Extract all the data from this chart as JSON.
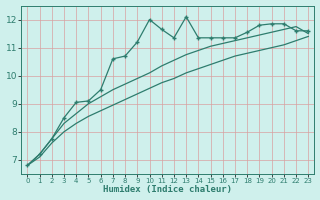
{
  "xlabel": "Humidex (Indice chaleur)",
  "background_color": "#cff0ec",
  "line_color": "#2e7d6e",
  "grid_color": "#b8ddd9",
  "xlim": [
    -0.5,
    23.5
  ],
  "ylim": [
    6.5,
    12.5
  ],
  "xticks": [
    0,
    1,
    2,
    3,
    4,
    5,
    6,
    7,
    8,
    9,
    10,
    11,
    12,
    13,
    14,
    15,
    16,
    17,
    18,
    19,
    20,
    21,
    22,
    23
  ],
  "yticks": [
    7,
    8,
    9,
    10,
    11,
    12
  ],
  "line1_x": [
    0,
    1,
    2,
    3,
    4,
    5,
    6,
    7,
    8,
    9,
    10,
    11,
    12,
    13,
    14,
    15,
    16,
    17,
    18,
    19,
    20,
    21,
    22,
    23
  ],
  "line1_y": [
    6.8,
    7.1,
    7.6,
    8.0,
    8.3,
    8.55,
    8.75,
    8.95,
    9.15,
    9.35,
    9.55,
    9.75,
    9.9,
    10.1,
    10.25,
    10.4,
    10.55,
    10.7,
    10.8,
    10.9,
    11.0,
    11.1,
    11.25,
    11.4
  ],
  "line2_x": [
    0,
    1,
    2,
    3,
    4,
    5,
    6,
    7,
    8,
    9,
    10,
    11,
    12,
    13,
    14,
    15,
    16,
    17,
    18,
    19,
    20,
    21,
    22,
    23
  ],
  "line2_y": [
    6.8,
    7.2,
    7.75,
    8.3,
    8.65,
    9.0,
    9.25,
    9.5,
    9.7,
    9.9,
    10.1,
    10.35,
    10.55,
    10.75,
    10.9,
    11.05,
    11.15,
    11.25,
    11.35,
    11.45,
    11.55,
    11.65,
    11.75,
    11.5
  ],
  "line3_x": [
    0,
    1,
    2,
    3,
    4,
    5,
    6,
    7,
    8,
    9,
    10,
    11,
    12,
    13,
    14,
    15,
    16,
    17,
    18,
    19,
    20,
    21,
    22,
    23
  ],
  "line3_y": [
    6.8,
    7.2,
    7.75,
    8.5,
    9.05,
    9.1,
    9.5,
    10.6,
    10.7,
    11.2,
    12.0,
    11.65,
    11.35,
    12.1,
    11.35,
    11.35,
    11.35,
    11.35,
    11.55,
    11.8,
    11.85,
    11.85,
    11.6,
    11.6
  ]
}
